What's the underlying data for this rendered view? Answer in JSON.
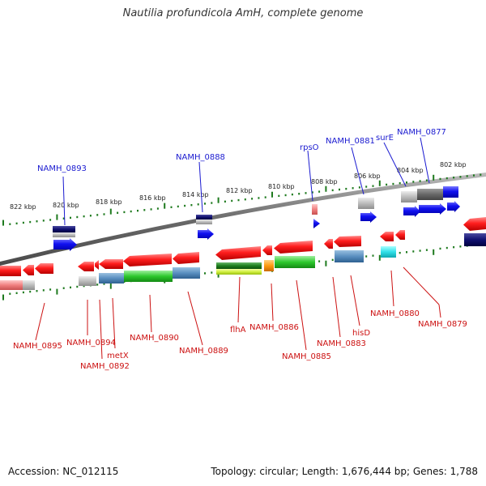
{
  "title": "Nautilia profundicola AmH, complete genome",
  "footer": {
    "accession": "Accession: NC_012115",
    "topology": "Topology: circular; Length: 1,676,444 bp; Genes: 1,788"
  },
  "colors": {
    "forward_label": "#1a1ad0",
    "reverse_label": "#cc1111",
    "forward_gene": "#1010e8",
    "reverse_gene": "#e81010",
    "backbone": "#7a7a7a",
    "tick": "#1e7a1e"
  },
  "scale_labels": [
    "822 kbp",
    "820 kbp",
    "818 kbp",
    "816 kbp",
    "814 kbp",
    "812 kbp",
    "810 kbp",
    "808 kbp",
    "806 kbp",
    "804 kbp",
    "802 kbp"
  ],
  "forward_genes": [
    "NAMH_0893",
    "NAMH_0888",
    "rpsO",
    "NAMH_0881",
    "surE",
    "NAMH_0877"
  ],
  "reverse_genes": [
    "NAMH_0895",
    "NAMH_0894",
    "NAMH_0892",
    "metX",
    "NAMH_0890",
    "NAMH_0889",
    "flhA",
    "NAMH_0886",
    "NAMH_0885",
    "NAMH_0883",
    "hisD",
    "NAMH_0880",
    "NAMH_0879"
  ]
}
